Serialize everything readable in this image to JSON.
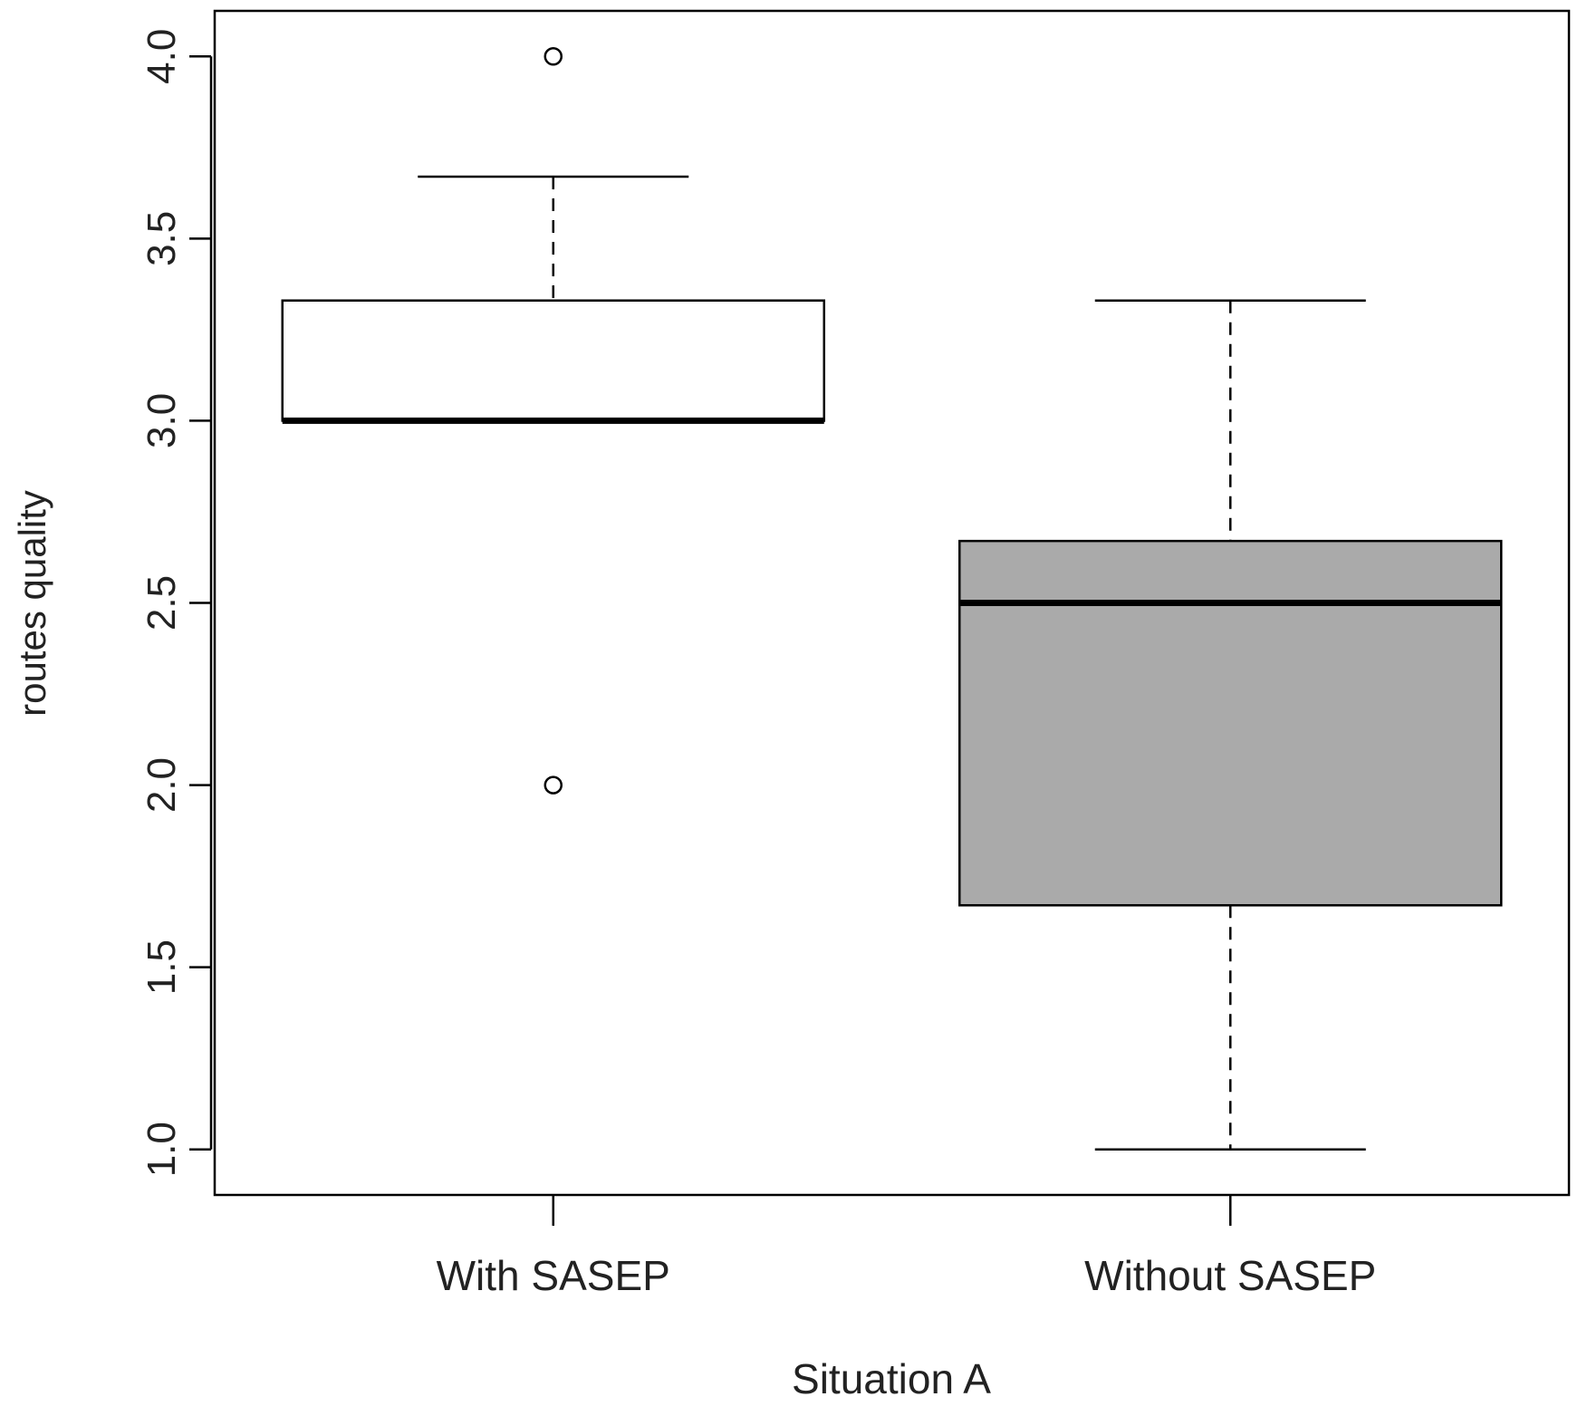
{
  "chart_data": {
    "type": "boxplot",
    "title": "",
    "xlabel": "Situation A",
    "ylabel": "routes quality",
    "ylim": [
      0.875,
      4.125
    ],
    "yticks": [
      "1.0",
      "1.5",
      "2.0",
      "2.5",
      "3.0",
      "3.5",
      "4.0"
    ],
    "grid": false,
    "categories": [
      "With SASEP",
      "Without SASEP"
    ],
    "boxes": [
      {
        "category": "With SASEP",
        "whisker_low": 3.0,
        "q1": 3.0,
        "median": 3.0,
        "q3": 3.33,
        "whisker_high": 3.67,
        "outliers": [
          4.0,
          2.0
        ],
        "fill": "#ffffff"
      },
      {
        "category": "Without SASEP",
        "whisker_low": 1.0,
        "q1": 1.67,
        "median": 2.5,
        "q3": 2.67,
        "whisker_high": 3.33,
        "outliers": [],
        "fill": "#aaaaaa"
      }
    ]
  }
}
